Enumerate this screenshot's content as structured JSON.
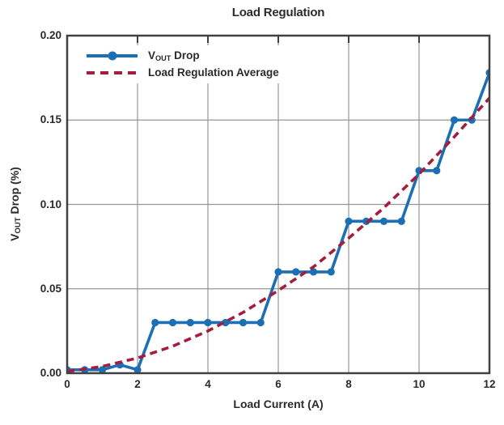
{
  "title": "Load Regulation",
  "colors": {
    "series_blue": "#1c6eb5",
    "series_crimson": "#a41e3c",
    "grid": "#969696",
    "spine": "#404040",
    "text": "#2b2b2b"
  },
  "legend": {
    "items": [
      {
        "label_prefix": "V",
        "label_sub": "OUT",
        "label_suffix": " Drop",
        "style": "solid-with-marker"
      },
      {
        "label": "Load Regulation Average",
        "style": "dashed"
      }
    ]
  },
  "axes": {
    "xlabel": "Load Current (A)",
    "ylabel_prefix": "V",
    "ylabel_sub": "OUT",
    "ylabel_suffix": " Drop (%)",
    "x_tick_labels": [
      "0",
      "2",
      "4",
      "6",
      "8",
      "10",
      "12"
    ],
    "y_tick_labels": [
      "0.00",
      "0.05",
      "0.10",
      "0.15",
      "0.20"
    ]
  },
  "chart_data": {
    "type": "line",
    "title": "Load Regulation",
    "xlabel": "Load Current (A)",
    "ylabel": "VOUT Drop (%)",
    "xlim": [
      0,
      12
    ],
    "ylim": [
      0,
      0.2
    ],
    "x_ticks": [
      0,
      2,
      4,
      6,
      8,
      10,
      12
    ],
    "y_ticks": [
      0,
      0.05,
      0.1,
      0.15,
      0.2
    ],
    "grid": true,
    "legend_position": "upper left",
    "series": [
      {
        "name": "VOUT Drop",
        "type": "line+markers",
        "color": "#1c6eb5",
        "x": [
          0,
          0.5,
          1,
          1.5,
          2,
          2.5,
          3,
          3.5,
          4,
          4.5,
          5,
          5.5,
          6,
          6.5,
          7,
          7.5,
          8,
          8.5,
          9,
          9.5,
          10,
          10.5,
          11,
          11.5,
          12
        ],
        "y": [
          0.002,
          0.002,
          0.002,
          0.005,
          0.002,
          0.03,
          0.03,
          0.03,
          0.03,
          0.03,
          0.03,
          0.03,
          0.06,
          0.06,
          0.06,
          0.06,
          0.09,
          0.09,
          0.09,
          0.09,
          0.12,
          0.12,
          0.15,
          0.15,
          0.178
        ]
      },
      {
        "name": "Load Regulation Average",
        "type": "dashed-line",
        "color": "#a41e3c",
        "x": [
          0,
          1,
          2,
          3,
          4,
          5,
          6,
          7,
          8,
          9,
          10,
          11,
          12
        ],
        "y": [
          0.001,
          0.004,
          0.009,
          0.016,
          0.025,
          0.036,
          0.049,
          0.063,
          0.08,
          0.098,
          0.118,
          0.14,
          0.163
        ]
      }
    ]
  }
}
